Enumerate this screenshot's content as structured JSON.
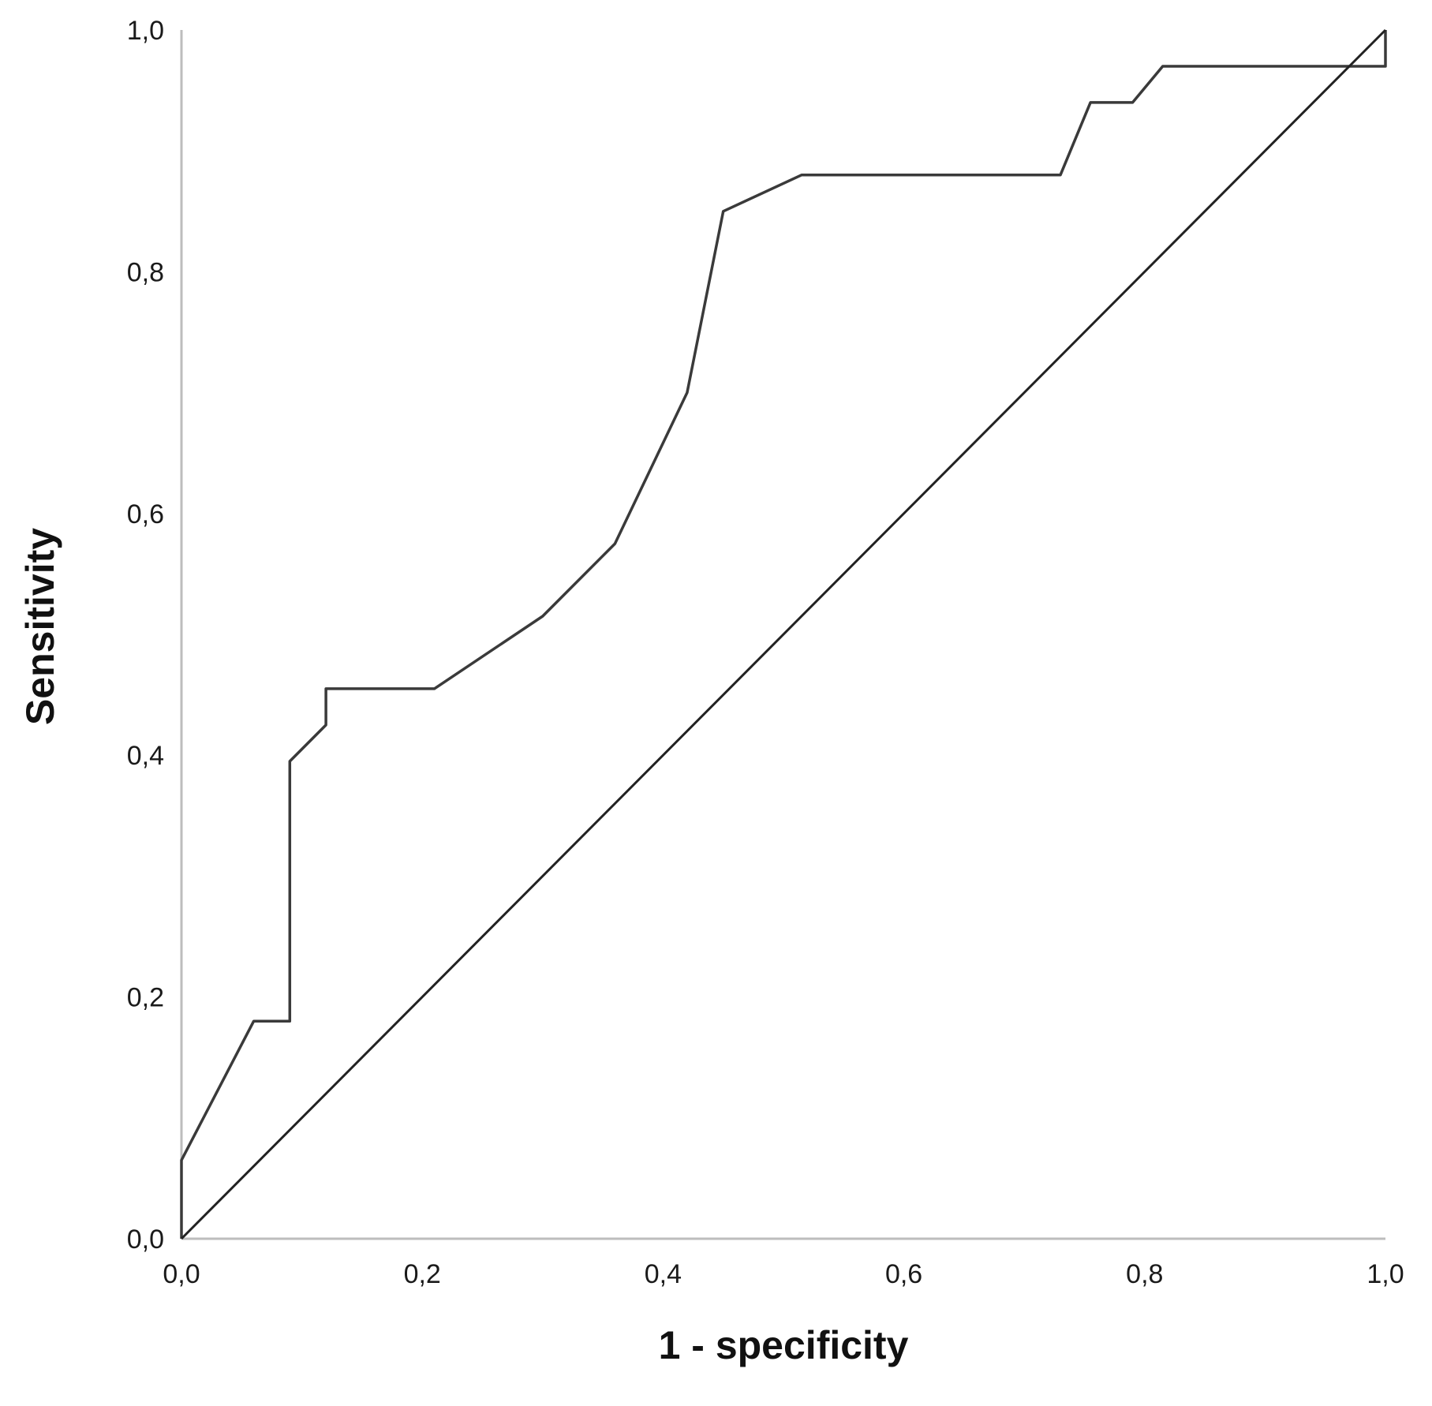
{
  "chart_data": {
    "type": "line",
    "title": "",
    "xlabel": "1 - specificity",
    "ylabel": "Sensitivity",
    "xlim": [
      0,
      1
    ],
    "ylim": [
      0,
      1
    ],
    "x_ticks": [
      "0,0",
      "0,2",
      "0,4",
      "0,6",
      "0,8",
      "1,0"
    ],
    "y_ticks": [
      "0,0",
      "0,2",
      "0,4",
      "0,6",
      "0,8",
      "1,0"
    ],
    "grid": false,
    "legend": "none",
    "series": [
      {
        "line_color": "#3a3a3a",
        "points": [
          [
            0.0,
            0.0
          ],
          [
            0.0,
            0.065
          ],
          [
            0.06,
            0.18
          ],
          [
            0.09,
            0.18
          ],
          [
            0.09,
            0.395
          ],
          [
            0.12,
            0.425
          ],
          [
            0.12,
            0.455
          ],
          [
            0.21,
            0.455
          ],
          [
            0.3,
            0.515
          ],
          [
            0.36,
            0.575
          ],
          [
            0.42,
            0.7
          ],
          [
            0.45,
            0.85
          ],
          [
            0.515,
            0.88
          ],
          [
            0.73,
            0.88
          ],
          [
            0.755,
            0.94
          ],
          [
            0.79,
            0.94
          ],
          [
            0.815,
            0.97
          ],
          [
            1.0,
            0.97
          ],
          [
            1.0,
            1.0
          ]
        ]
      },
      {
        "line_color": "#222222",
        "points": [
          [
            0,
            0
          ],
          [
            1,
            1
          ]
        ]
      }
    ]
  }
}
